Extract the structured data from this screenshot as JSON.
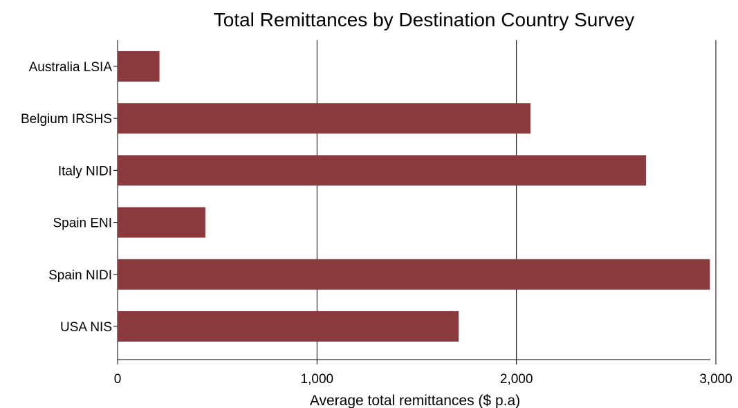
{
  "chart_data": {
    "type": "bar",
    "orientation": "horizontal",
    "title": "Total Remittances by Destination Country Survey",
    "xlabel": "Average total remittances ($ p.a)",
    "ylabel": "",
    "categories": [
      "Australia LSIA",
      "Belgium IRSHS",
      "Italy NIDI",
      "Spain ENI",
      "Spain NIDI",
      "USA NIS"
    ],
    "values": [
      210,
      2070,
      2650,
      440,
      2970,
      1710
    ],
    "xlim": [
      0,
      3000
    ],
    "xticks": [
      0,
      1000,
      2000,
      3000
    ],
    "xtick_labels": [
      "0",
      "1,000",
      "2,000",
      "3,000"
    ],
    "grid": "vertical gridlines at major ticks",
    "bar_color": "#8B3A3E"
  }
}
